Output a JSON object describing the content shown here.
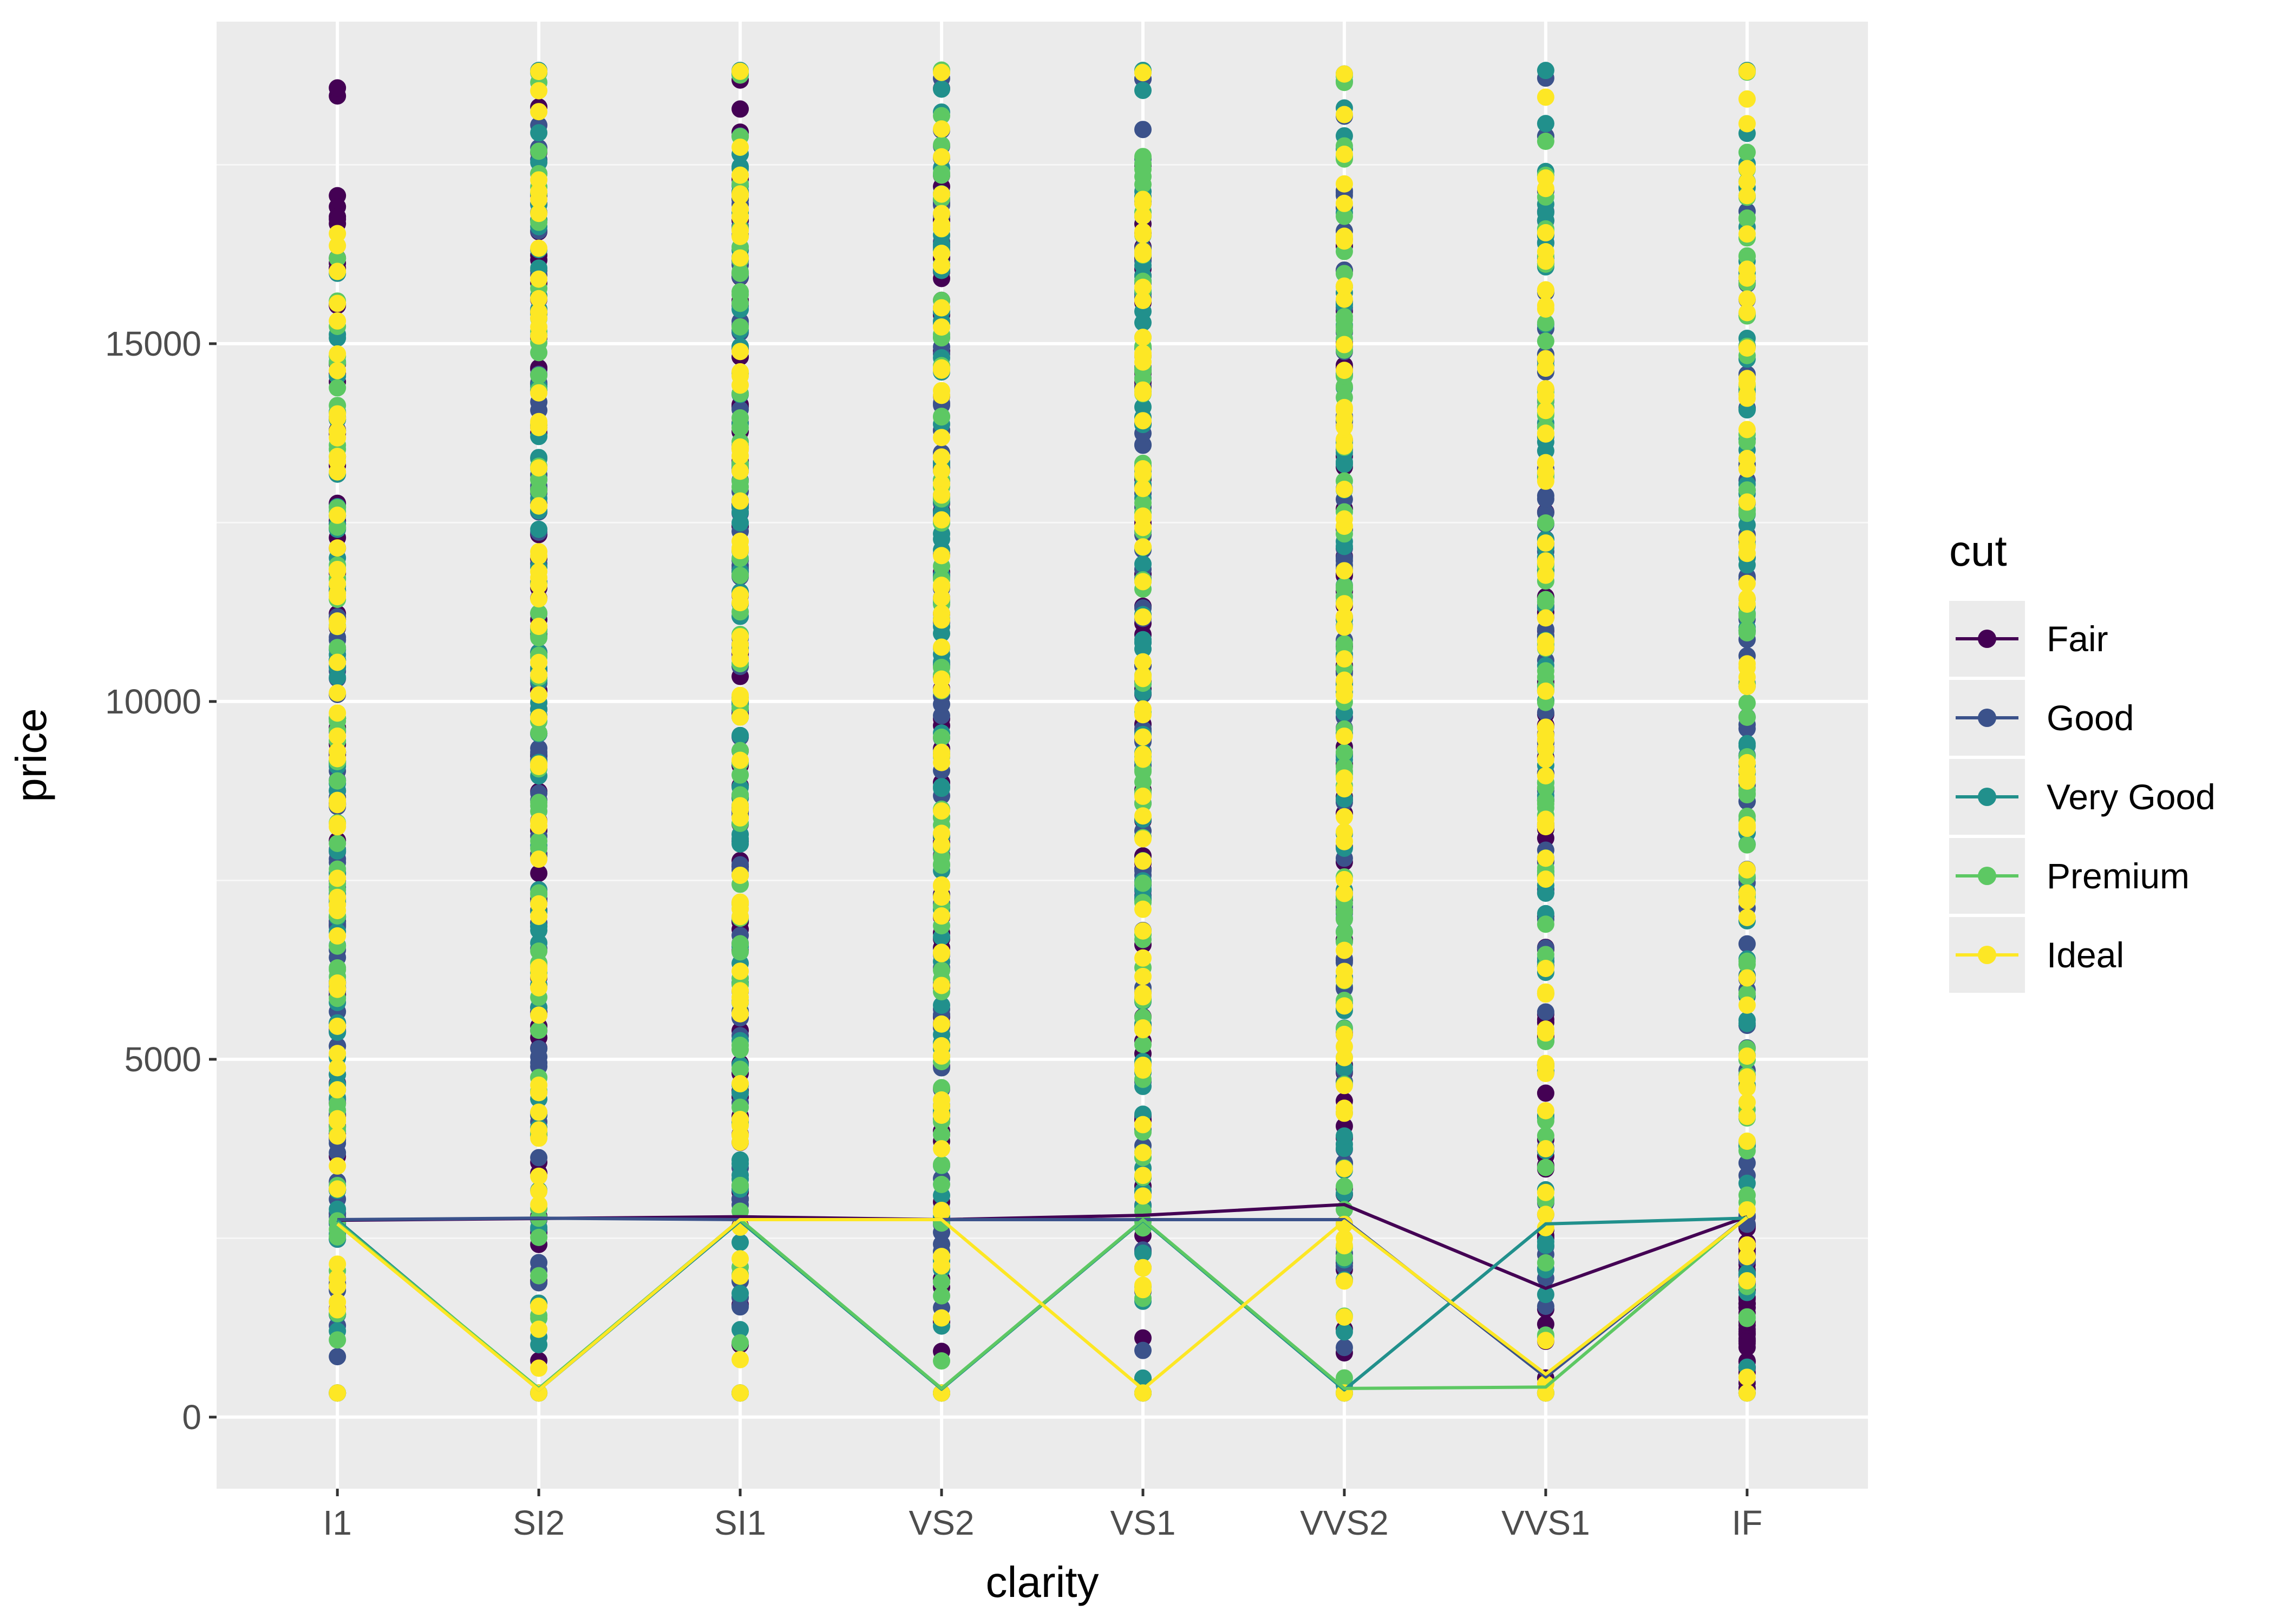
{
  "chart_data": {
    "type": "line",
    "xlabel": "clarity",
    "ylabel": "price",
    "categories": [
      "I1",
      "SI2",
      "SI1",
      "VS2",
      "VS1",
      "VVS2",
      "VVS1",
      "IF"
    ],
    "ylim": [
      -1000,
      19500
    ],
    "yticks": [
      0,
      5000,
      10000,
      15000
    ],
    "ytick_labels": [
      "0",
      "5000",
      "10000",
      "15000"
    ],
    "grid": true,
    "legend_title": "cut",
    "legend_position": "right",
    "series": [
      {
        "name": "Fair",
        "color": "#440154",
        "ranges": [
          [
            337,
            18574
          ],
          [
            337,
            18308
          ],
          [
            337,
            18684
          ],
          [
            337,
            18565
          ],
          [
            337,
            18700
          ],
          [
            337,
            16364
          ],
          [
            337,
            12648
          ],
          [
            337,
            2800
          ]
        ],
        "values": [
          2750,
          2775,
          2800,
          2760,
          2820,
          2970,
          1800,
          2800
        ]
      },
      {
        "name": "Good",
        "color": "#3B528B",
        "ranges": [
          [
            337,
            11548
          ],
          [
            337,
            18788
          ],
          [
            337,
            18770
          ],
          [
            337,
            18707
          ],
          [
            337,
            18700
          ],
          [
            337,
            18768
          ],
          [
            337,
            18711
          ],
          [
            337,
            16850
          ]
        ],
        "values": [
          2760,
          2780,
          2760,
          2760,
          2760,
          2760,
          560,
          2800
        ]
      },
      {
        "name": "Very Good",
        "color": "#21908C",
        "ranges": [
          [
            337,
            15984
          ],
          [
            337,
            18818
          ],
          [
            337,
            18818
          ],
          [
            337,
            18818
          ],
          [
            337,
            18818
          ],
          [
            337,
            18768
          ],
          [
            337,
            18818
          ],
          [
            337,
            18818
          ]
        ],
        "values": [
          2750,
          380,
          2740,
          390,
          2750,
          380,
          2700,
          2780
        ]
      },
      {
        "name": "Premium",
        "color": "#5DC863",
        "ranges": [
          [
            337,
            16193
          ],
          [
            337,
            18784
          ],
          [
            337,
            18797
          ],
          [
            337,
            18823
          ],
          [
            337,
            18795
          ],
          [
            337,
            18740
          ],
          [
            337,
            17828
          ],
          [
            337,
            18795
          ]
        ],
        "values": [
          2720,
          400,
          2760,
          400,
          2760,
          400,
          420,
          2800
        ]
      },
      {
        "name": "Ideal",
        "color": "#FDE725",
        "ranges": [
          [
            337,
            16538
          ],
          [
            337,
            18804
          ],
          [
            337,
            18806
          ],
          [
            337,
            18791
          ],
          [
            337,
            18787
          ],
          [
            337,
            18768
          ],
          [
            337,
            18445
          ],
          [
            337,
            18806
          ]
        ],
        "values": [
          2700,
          380,
          2760,
          2760,
          390,
          2740,
          600,
          2790
        ]
      }
    ]
  }
}
